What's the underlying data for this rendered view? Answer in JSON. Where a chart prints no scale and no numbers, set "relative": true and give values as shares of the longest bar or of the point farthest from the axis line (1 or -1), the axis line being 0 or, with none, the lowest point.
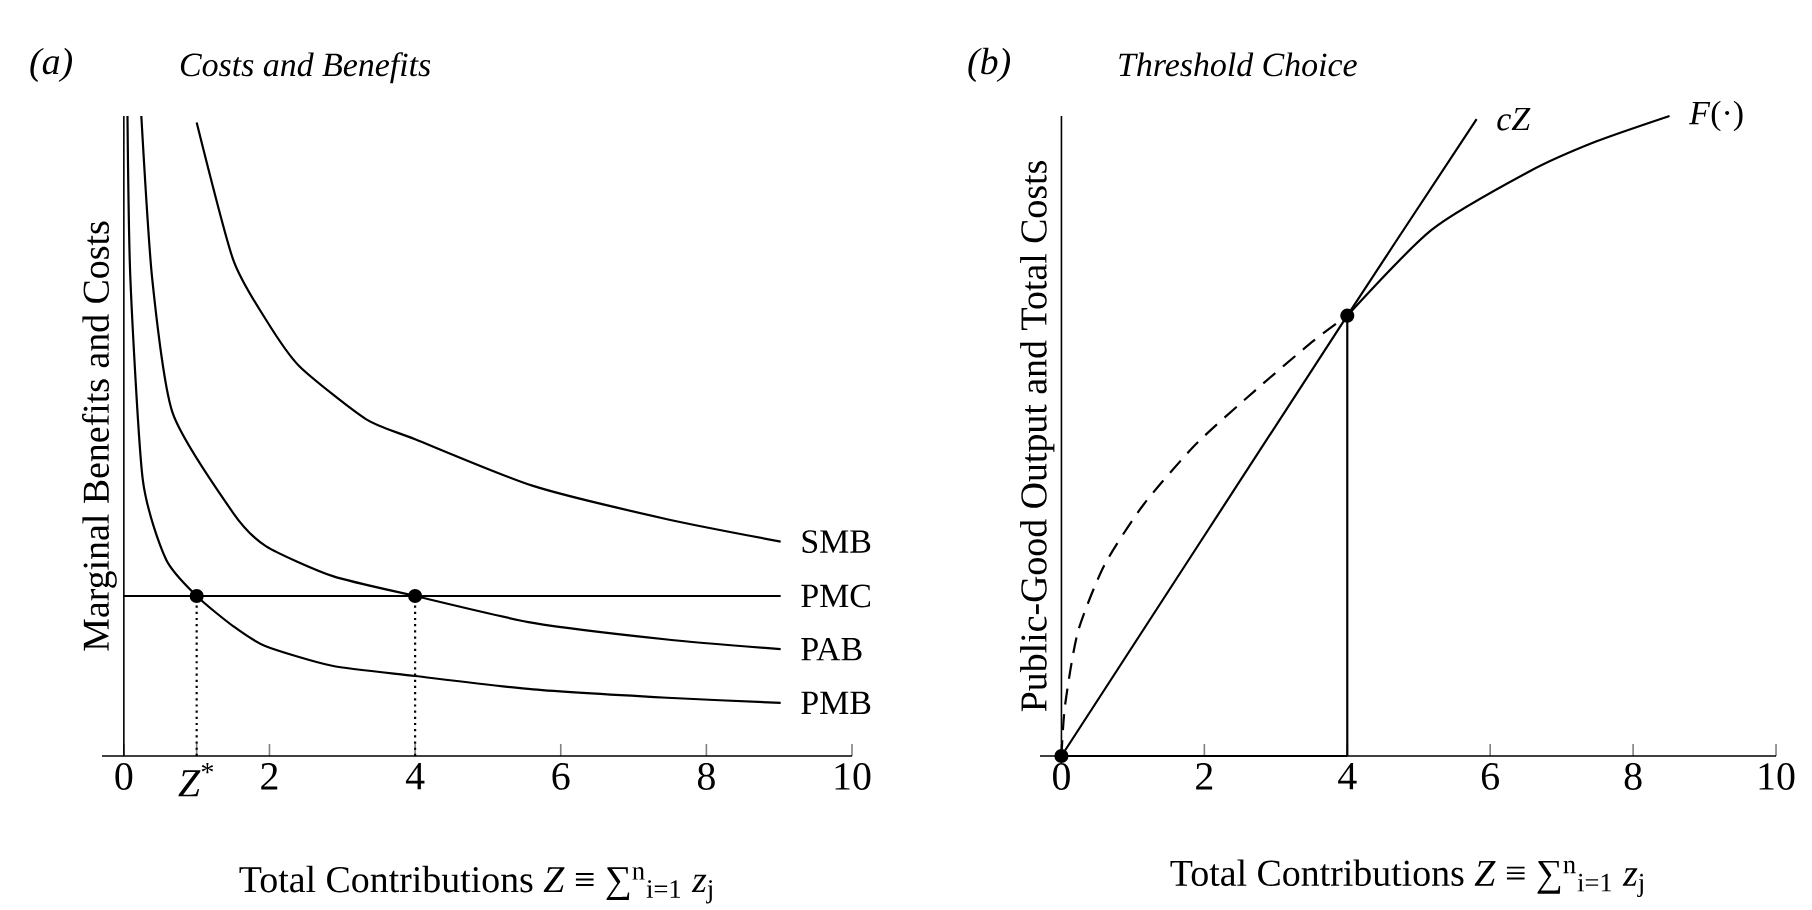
{
  "chart_data": [
    {
      "type": "line",
      "relative": true,
      "title": "Costs and Benefits",
      "annotations": [
        "(a)"
      ],
      "xlabel": "Total Contributions *Z* ≡ ∑$^{n}$$_{i=1}$ *z*$_{j}$",
      "ylabel": "Marginal Benefits and Costs",
      "xlim": [
        -0.3,
        10
      ],
      "xticks": [
        0,
        {
          "value": 1,
          "label": "*Z*$^{*}$"
        },
        2,
        4,
        6,
        8,
        10
      ],
      "line_style": "solid",
      "marker": "none",
      "series": [
        {
          "name": "SMB",
          "color": "#000000",
          "x": [
            1.0,
            1.5,
            1.95,
            2.41,
            3.33,
            4.0,
            5.62,
            7.46,
            9.02
          ],
          "values": [
            0.99,
            0.776,
            0.682,
            0.609,
            0.526,
            0.495,
            0.422,
            0.37,
            0.335
          ]
        },
        {
          "name": "PMC",
          "color": "#000000",
          "x": [
            0,
            9.02
          ],
          "values": [
            0.25,
            0.25
          ]
        },
        {
          "name": "PAB",
          "color": "#000000",
          "x": [
            0.24,
            0.39,
            0.67,
            1.5,
            1.95,
            2.87,
            4.0,
            5.62,
            7.46,
            9.02
          ],
          "values": [
            1.0,
            0.745,
            0.536,
            0.38,
            0.328,
            0.281,
            0.25,
            0.208,
            0.182,
            0.167
          ]
        },
        {
          "name": "PMB",
          "color": "#000000",
          "x": [
            0.05,
            0.09,
            0.26,
            0.58,
            1.0,
            1.5,
            1.94,
            2.86,
            4.0,
            5.62,
            7.46,
            9.02
          ],
          "values": [
            1.0,
            0.745,
            0.432,
            0.307,
            0.25,
            0.203,
            0.172,
            0.141,
            0.125,
            0.104,
            0.091,
            0.083
          ]
        },
        {
          "type": "line",
          "line_style": "dotted",
          "color": "#000000",
          "x": [
            1,
            1
          ],
          "values": [
            0,
            0.25
          ]
        },
        {
          "type": "line",
          "line_style": "dotted",
          "color": "#000000",
          "x": [
            4,
            4
          ],
          "values": [
            0,
            0.25
          ]
        },
        {
          "type": "scatter",
          "marker": "circle",
          "color": "#000000",
          "x": [
            1,
            4
          ],
          "values": [
            0.25,
            0.25
          ]
        }
      ]
    },
    {
      "type": "line",
      "relative": true,
      "title": "Threshold Choice",
      "annotations": [
        "(b)"
      ],
      "xlabel": "Total Contributions *Z* ≡ ∑$^{n}$$_{i=1}$ *z*$_{j}$",
      "ylabel": "Public-Good Output and Total Costs",
      "xlim": [
        -0.3,
        10
      ],
      "xticks": [
        0,
        2,
        4,
        6,
        8,
        10
      ],
      "line_style": "solid",
      "marker": "none",
      "series": [
        {
          "name": "*cZ*",
          "color": "#000000",
          "x": [
            0,
            4.0,
            5.81
          ],
          "values": [
            0,
            0.688,
            0.995
          ]
        },
        {
          "name": "*F*(·)",
          "color": "#000000",
          "x": [
            4.0,
            5.18,
            6.56,
            7.48,
            8.51
          ],
          "values": [
            0.688,
            0.822,
            0.914,
            0.96,
            1.0
          ]
        },
        {
          "line_style": "dashed",
          "color": "#000000",
          "x": [
            0,
            0.05,
            0.23,
            0.6,
            1.15,
            1.88,
            2.71,
            3.53,
            4.0
          ],
          "values": [
            0,
            0.079,
            0.194,
            0.298,
            0.393,
            0.487,
            0.571,
            0.649,
            0.688
          ]
        },
        {
          "color": "#000000",
          "x": [
            4,
            4
          ],
          "values": [
            0,
            0.688
          ]
        },
        {
          "color": "#000000",
          "x": [
            0,
            4
          ],
          "values": [
            0,
            0
          ]
        },
        {
          "type": "scatter",
          "marker": "circle",
          "color": "#000000",
          "x": [
            0,
            4
          ],
          "values": [
            0,
            0.688
          ]
        }
      ]
    }
  ]
}
